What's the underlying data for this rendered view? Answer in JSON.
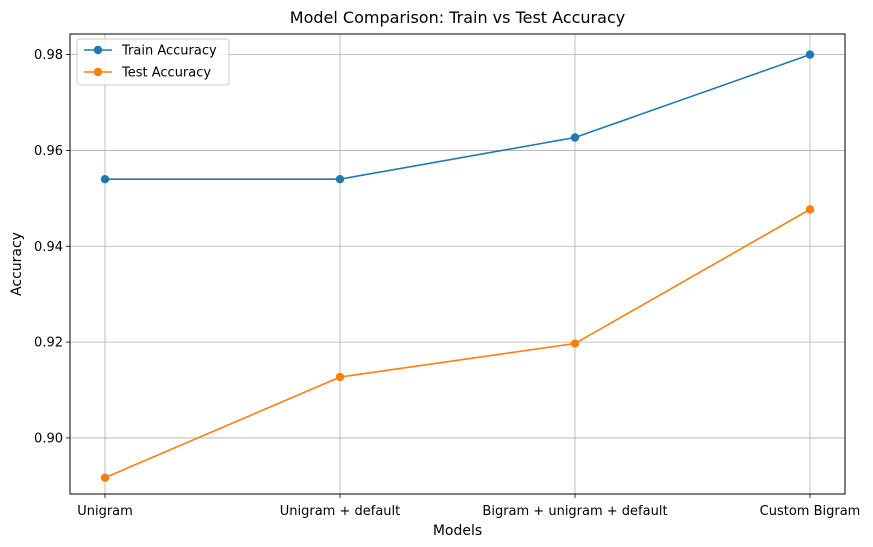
{
  "chart_data": {
    "type": "line",
    "title": "Model Comparison: Train vs Test Accuracy",
    "xlabel": "Models",
    "ylabel": "Accuracy",
    "categories": [
      "Unigram",
      "Unigram + default",
      "Bigram + unigram + default",
      "Custom Bigram"
    ],
    "ylim": [
      0.8883,
      0.9843
    ],
    "yticks": [
      "0.90",
      "0.92",
      "0.94",
      "0.96",
      "0.98"
    ],
    "grid": true,
    "legend_position": "top-left",
    "series": [
      {
        "name": "Train Accuracy",
        "color": "#1f77b4",
        "values": [
          0.954,
          0.954,
          0.9627,
          0.98
        ]
      },
      {
        "name": "Test Accuracy",
        "color": "#ff7f0e",
        "values": [
          0.8917,
          0.9127,
          0.9197,
          0.9477
        ]
      }
    ]
  }
}
